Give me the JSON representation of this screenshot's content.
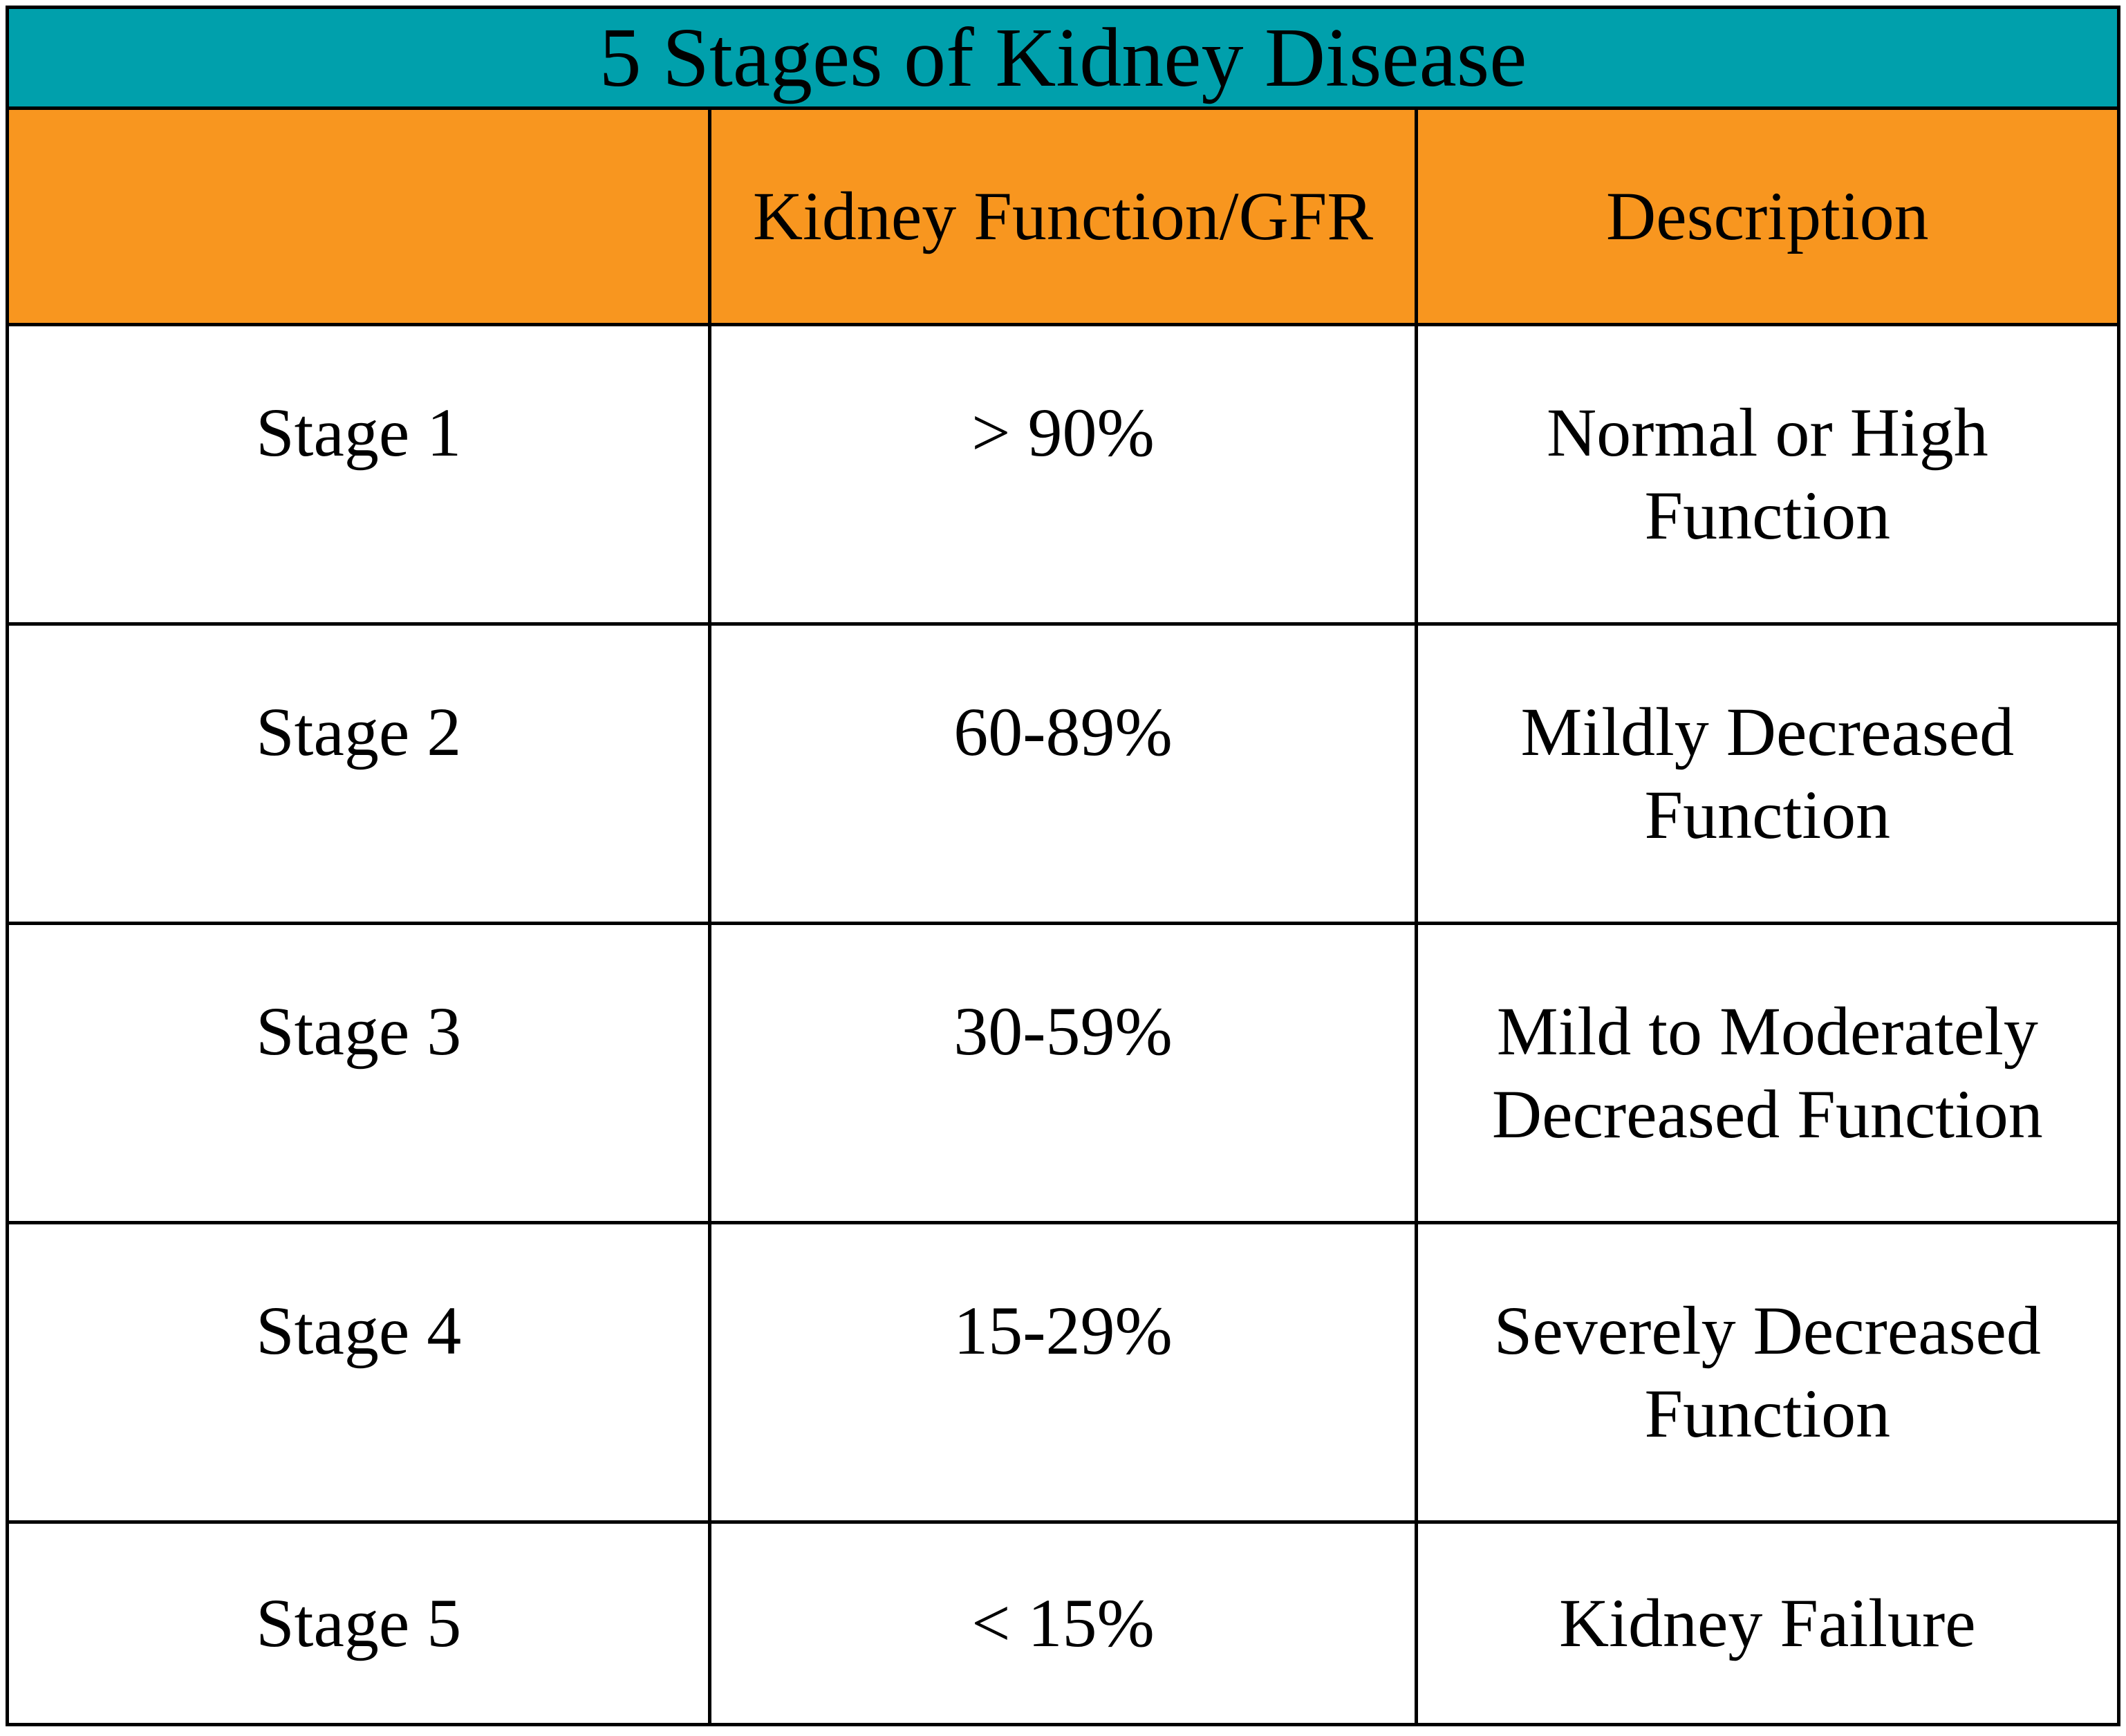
{
  "table": {
    "title": "5 Stages of Kidney Disease",
    "columns": [
      "",
      "Kidney Function/GFR",
      "Description"
    ],
    "rows": [
      {
        "stage": "Stage 1",
        "gfr": "> 90%",
        "description": "Normal or High\nFunction"
      },
      {
        "stage": "Stage 2",
        "gfr": "60-89%",
        "description": "Mildly Decreased\nFunction"
      },
      {
        "stage": "Stage 3",
        "gfr": "30-59%",
        "description": "Mild to Moderately\nDecreased Function"
      },
      {
        "stage": "Stage 4",
        "gfr": "15-29%",
        "description": "Severely Decreased\nFunction"
      },
      {
        "stage": "Stage 5",
        "gfr": "< 15%",
        "description": "Kidney Failure"
      }
    ]
  },
  "chart_data": {
    "type": "table",
    "title": "5 Stages of Kidney Disease",
    "columns": [
      "",
      "Kidney Function/GFR",
      "Description"
    ],
    "rows": [
      [
        "Stage 1",
        "> 90%",
        "Normal or High Function"
      ],
      [
        "Stage 2",
        "60-89%",
        "Mildly Decreased Function"
      ],
      [
        "Stage 3",
        "30-59%",
        "Mild to Moderately Decreased Function"
      ],
      [
        "Stage 4",
        "15-29%",
        "Severely Decreased Function"
      ],
      [
        "Stage 5",
        "< 15%",
        "Kidney Failure"
      ]
    ],
    "layout": {
      "title_bar_color": "#00A0AC",
      "header_row_color": "#F8961F",
      "grid": "on"
    }
  },
  "colors": {
    "teal": "#00A0AC",
    "orange": "#F8961F",
    "border": "#000000",
    "cell_bg": "#FFFFFF",
    "text": "#000000"
  }
}
